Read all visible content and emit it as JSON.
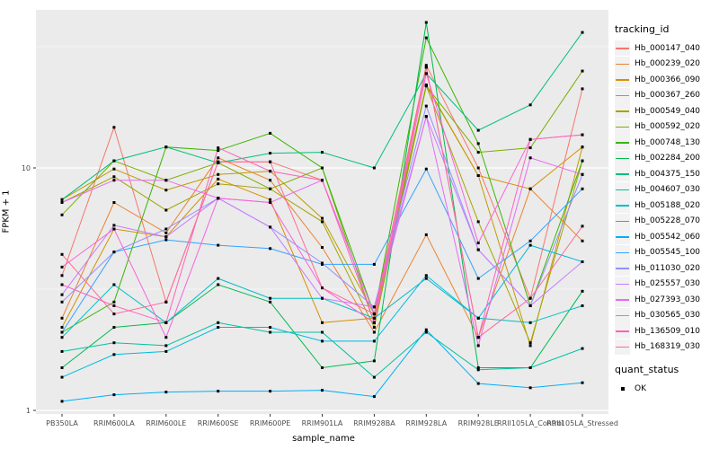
{
  "figure": {
    "background": "#FFFFFF",
    "panel_bg": "#EBEBEB",
    "grid_color": "#FFFFFF",
    "axis_text_color": "#4D4D4D",
    "tick_color": "#333333"
  },
  "axes": {
    "x_label": "sample_name",
    "y_label": "FPKM + 1"
  },
  "legend": {
    "tracking_title": "tracking_id",
    "quant_title": "quant_status",
    "quant_items": [
      {
        "label": "OK",
        "marker": "black-square"
      }
    ]
  },
  "chart_data": {
    "type": "line",
    "title": "",
    "xlabel": "sample_name",
    "ylabel": "FPKM + 1",
    "y_scale": "log10",
    "ylim": [
      1,
      45
    ],
    "y_major_breaks": [
      1,
      10
    ],
    "y_minor_breaks": [
      3.162,
      31.623
    ],
    "grid": true,
    "legend_position": "right",
    "point_marker": "black-square",
    "categories": [
      "PB350LA",
      "RRIM600LA",
      "RRIM600LE",
      "RRIM600SE",
      "RRIM600PE",
      "RRIM901LA",
      "RRIM928BA",
      "RRIM928LA",
      "RRIM928LE",
      "RRII105LA_Control",
      "RRII105LA_Stressed"
    ],
    "series": [
      {
        "name": "Hb_000147_040",
        "color": "#F8766D",
        "values": [
          3.6,
          14.7,
          2.8,
          10.6,
          10.6,
          8.9,
          2.5,
          26.5,
          10.0,
          2.9,
          21.2
        ]
      },
      {
        "name": "Hb_000239_020",
        "color": "#EA8331",
        "values": [
          2.4,
          7.2,
          5.4,
          11.0,
          8.9,
          4.7,
          2.1,
          5.3,
          2.0,
          8.2,
          5.0
        ]
      },
      {
        "name": "Hb_000366_090",
        "color": "#D89000",
        "values": [
          2.2,
          5.6,
          5.2,
          9.0,
          7.4,
          2.3,
          2.4,
          21.8,
          9.3,
          8.2,
          12.2
        ]
      },
      {
        "name": "Hb_000367_260",
        "color": "#C09B00",
        "values": [
          7.4,
          9.9,
          8.1,
          9.4,
          9.7,
          6.2,
          2.5,
          22.0,
          9.3,
          1.85,
          12.2
        ]
      },
      {
        "name": "Hb_000549_040",
        "color": "#A3A500",
        "values": [
          7.2,
          9.2,
          6.7,
          8.6,
          8.2,
          6.0,
          2.2,
          21.8,
          6.0,
          1.9,
          10.7
        ]
      },
      {
        "name": "Hb_000592_020",
        "color": "#7CAE00",
        "values": [
          6.4,
          10.7,
          8.9,
          10.5,
          8.2,
          10.0,
          2.3,
          21.8,
          11.6,
          12.1,
          25.1
        ]
      },
      {
        "name": "Hb_000748_130",
        "color": "#39B600",
        "values": [
          2.1,
          2.8,
          12.2,
          11.8,
          13.9,
          10.0,
          2.5,
          34.4,
          12.6,
          2.7,
          10.7
        ]
      },
      {
        "name": "Hb_002284_200",
        "color": "#00BB4E",
        "values": [
          1.5,
          2.2,
          2.3,
          3.3,
          2.8,
          1.5,
          1.6,
          39.8,
          1.5,
          1.5,
          3.1
        ]
      },
      {
        "name": "Hb_004375_150",
        "color": "#00BF7D",
        "values": [
          7.4,
          10.7,
          12.2,
          10.5,
          11.5,
          11.6,
          10.0,
          24.5,
          14.3,
          18.2,
          36.2
        ]
      },
      {
        "name": "Hb_004607_030",
        "color": "#00C1A3",
        "values": [
          1.75,
          1.9,
          1.85,
          2.3,
          2.1,
          2.1,
          1.37,
          2.1,
          1.47,
          1.5,
          1.8
        ]
      },
      {
        "name": "Hb_005188_020",
        "color": "#00BFC4",
        "values": [
          2.0,
          3.3,
          2.3,
          3.5,
          2.9,
          2.9,
          2.4,
          3.5,
          2.4,
          2.3,
          2.7
        ]
      },
      {
        "name": "Hb_005228_070",
        "color": "#00BAE0",
        "values": [
          1.37,
          1.7,
          1.75,
          2.2,
          2.2,
          1.93,
          1.93,
          3.6,
          2.4,
          4.8,
          4.1
        ]
      },
      {
        "name": "Hb_005542_060",
        "color": "#00B0F6",
        "values": [
          1.09,
          1.16,
          1.19,
          1.2,
          1.2,
          1.21,
          1.14,
          2.15,
          1.29,
          1.24,
          1.3
        ]
      },
      {
        "name": "Hb_005545_100",
        "color": "#35A2FF",
        "values": [
          2.1,
          4.5,
          5.05,
          4.8,
          4.65,
          4.0,
          4.0,
          9.9,
          3.5,
          5.0,
          8.2
        ]
      },
      {
        "name": "Hb_011030_020",
        "color": "#9590FF",
        "values": [
          2.8,
          4.5,
          5.6,
          7.5,
          5.7,
          4.05,
          2.67,
          18.0,
          4.6,
          2.7,
          9.4
        ]
      },
      {
        "name": "Hb_025557_030",
        "color": "#C77CFF",
        "values": [
          3.0,
          5.8,
          5.2,
          7.5,
          5.7,
          2.9,
          2.67,
          16.3,
          4.6,
          2.7,
          4.1
        ]
      },
      {
        "name": "Hb_027393_030",
        "color": "#E76BF3",
        "values": [
          7.2,
          8.9,
          8.9,
          7.5,
          7.2,
          8.9,
          2.5,
          16.3,
          1.85,
          11.0,
          9.4
        ]
      },
      {
        "name": "Hb_030565_030",
        "color": "#FA62DB",
        "values": [
          3.9,
          5.6,
          2.0,
          7.5,
          7.2,
          3.2,
          2.3,
          24.5,
          4.9,
          13.1,
          13.7
        ]
      },
      {
        "name": "Hb_136509_010",
        "color": "#FF62BC",
        "values": [
          3.3,
          2.7,
          2.3,
          12.1,
          9.7,
          8.9,
          2.3,
          26.0,
          2.0,
          13.1,
          13.7
        ]
      },
      {
        "name": "Hb_168319_030",
        "color": "#FF6A98",
        "values": [
          4.4,
          2.5,
          2.8,
          10.6,
          10.6,
          3.2,
          2.5,
          26.0,
          2.0,
          2.9,
          5.75
        ]
      }
    ]
  }
}
